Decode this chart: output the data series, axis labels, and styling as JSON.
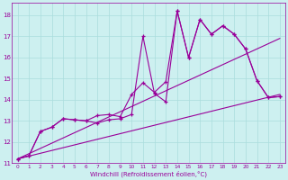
{
  "xlabel": "Windchill (Refroidissement éolien,°C)",
  "bg_color": "#cdf0f0",
  "grid_color": "#aadddd",
  "line_color": "#990099",
  "xlim": [
    -0.5,
    23.5
  ],
  "ylim": [
    11.0,
    18.6
  ],
  "xticks": [
    0,
    1,
    2,
    3,
    4,
    5,
    6,
    7,
    8,
    9,
    10,
    11,
    12,
    13,
    14,
    15,
    16,
    17,
    18,
    19,
    20,
    21,
    22,
    23
  ],
  "yticks": [
    11,
    12,
    13,
    14,
    15,
    16,
    17,
    18
  ],
  "series1_x": [
    0,
    1,
    2,
    3,
    4,
    5,
    6,
    7,
    8,
    9,
    10,
    11,
    12,
    13,
    14,
    15,
    16,
    17,
    18,
    19,
    20,
    21,
    22,
    23
  ],
  "series1_y": [
    11.2,
    11.35,
    12.5,
    12.7,
    13.1,
    13.05,
    13.0,
    12.9,
    13.05,
    13.1,
    13.3,
    17.0,
    14.3,
    13.9,
    18.2,
    16.0,
    17.8,
    17.1,
    17.5,
    17.1,
    16.4,
    14.9,
    14.1,
    14.15
  ],
  "series2_x": [
    0,
    1,
    2,
    3,
    4,
    5,
    6,
    7,
    8,
    9,
    10,
    11,
    12,
    13,
    14,
    15,
    16,
    17,
    18,
    19,
    20,
    21,
    22,
    23
  ],
  "series2_y": [
    11.2,
    11.35,
    12.5,
    12.7,
    13.1,
    13.05,
    13.0,
    13.25,
    13.3,
    13.2,
    14.25,
    14.8,
    14.35,
    14.85,
    18.2,
    16.0,
    17.8,
    17.1,
    17.5,
    17.1,
    16.4,
    14.9,
    14.1,
    14.15
  ],
  "trend1_x": [
    0,
    23
  ],
  "trend1_y": [
    11.2,
    16.9
  ],
  "trend2_x": [
    0,
    23
  ],
  "trend2_y": [
    11.2,
    14.25
  ]
}
